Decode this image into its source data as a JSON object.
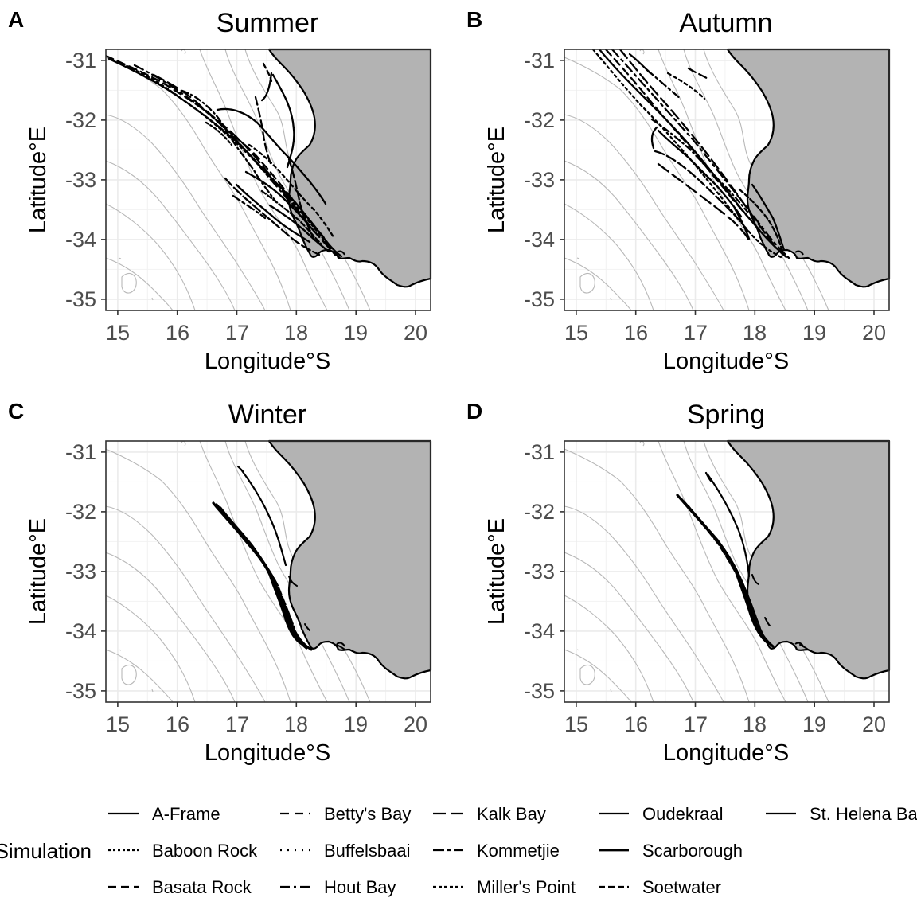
{
  "panels": [
    {
      "letter": "A",
      "title": "Summer"
    },
    {
      "letter": "B",
      "title": "Autumn"
    },
    {
      "letter": "C",
      "title": "Winter"
    },
    {
      "letter": "D",
      "title": "Spring"
    }
  ],
  "axes": {
    "xlabel": "Longitude°S",
    "ylabel": "Latitude°E",
    "xlim": [
      14.8,
      20.25
    ],
    "ylim": [
      -35.17,
      -30.82
    ],
    "xticks": [
      "15",
      "16",
      "17",
      "18",
      "19",
      "20"
    ],
    "yticks": [
      "-31",
      "-32",
      "-33",
      "-34",
      "-35"
    ],
    "grid": true
  },
  "legend": {
    "title": "Simulation",
    "position": "bottom",
    "entries": [
      {
        "label": "A-Frame",
        "dash": "solid"
      },
      {
        "label": "Baboon Rock",
        "dash": "dotted"
      },
      {
        "label": "Basata Rock",
        "dash": "dashed"
      },
      {
        "label": "Betty's Bay",
        "dash": "dashed"
      },
      {
        "label": "Buffelsbaai",
        "dash": "dotted"
      },
      {
        "label": "Hout Bay",
        "dash": "dotdash"
      },
      {
        "label": "Kalk Bay",
        "dash": "longdash"
      },
      {
        "label": "Kommetjie",
        "dash": "twodash"
      },
      {
        "label": "Miller's Point",
        "dash": "dotted"
      },
      {
        "label": "Oudekraal",
        "dash": "solid"
      },
      {
        "label": "Scarborough",
        "dash": "solid"
      },
      {
        "label": "Soetwater",
        "dash": "dashed"
      },
      {
        "label": "St. Helena Bay",
        "dash": "solid"
      }
    ]
  },
  "colors": {
    "land": "#b3b3b3",
    "isobath": "#b8b8b8",
    "grid": "#ebebeb",
    "track": "#000000",
    "tick_text": "#4d4d4d"
  }
}
